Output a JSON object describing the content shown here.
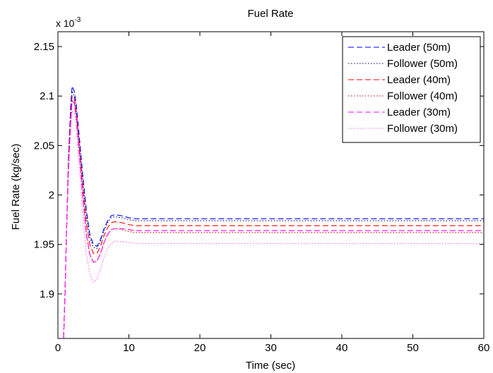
{
  "chart_data": {
    "type": "line",
    "title": "Fuel Rate",
    "xlabel": "Time (sec)",
    "ylabel": "Fuel Rate (kg/sec)",
    "y_exponent_label": "x 10",
    "y_exponent_power": "-3",
    "xlim": [
      0,
      60
    ],
    "ylim": [
      1.855,
      2.165
    ],
    "x_ticks": [
      0,
      10,
      20,
      30,
      40,
      50,
      60
    ],
    "x_tick_labels": [
      "0",
      "10",
      "20",
      "30",
      "40",
      "50",
      "60"
    ],
    "y_ticks": [
      1.9,
      1.95,
      2.0,
      2.05,
      2.1,
      2.15
    ],
    "y_tick_labels": [
      "1.9",
      "1.95",
      "2",
      "2.05",
      "2.1",
      "2.15"
    ],
    "grid": false,
    "legend_position": "top-right",
    "series": [
      {
        "name": "Leader (50m)",
        "color": "#0000ff",
        "dash": "dashed",
        "points": [
          [
            0.8,
            1.855
          ],
          [
            1.0,
            1.9
          ],
          [
            1.2,
            1.96
          ],
          [
            1.5,
            2.04
          ],
          [
            1.8,
            2.09
          ],
          [
            2.0,
            2.11
          ],
          [
            2.3,
            2.105
          ],
          [
            2.6,
            2.09
          ],
          [
            3.0,
            2.06
          ],
          [
            3.5,
            2.02
          ],
          [
            4.0,
            1.985
          ],
          [
            4.5,
            1.96
          ],
          [
            5.0,
            1.95
          ],
          [
            5.5,
            1.948
          ],
          [
            6.0,
            1.955
          ],
          [
            6.5,
            1.966
          ],
          [
            7.0,
            1.974
          ],
          [
            7.5,
            1.979
          ],
          [
            8.0,
            1.98
          ],
          [
            9.0,
            1.979
          ],
          [
            10.0,
            1.977
          ],
          [
            11.0,
            1.976
          ],
          [
            12.0,
            1.976
          ],
          [
            60.0,
            1.976
          ]
        ]
      },
      {
        "name": "Follower (50m)",
        "color": "#000080",
        "dash": "dotted",
        "points": [
          [
            0.8,
            1.855
          ],
          [
            1.0,
            1.9
          ],
          [
            1.2,
            1.96
          ],
          [
            1.5,
            2.04
          ],
          [
            1.8,
            2.085
          ],
          [
            2.0,
            2.105
          ],
          [
            2.3,
            2.1
          ],
          [
            2.6,
            2.085
          ],
          [
            3.0,
            2.055
          ],
          [
            3.5,
            2.015
          ],
          [
            4.0,
            1.98
          ],
          [
            4.5,
            1.957
          ],
          [
            5.0,
            1.947
          ],
          [
            5.5,
            1.946
          ],
          [
            6.0,
            1.953
          ],
          [
            6.5,
            1.964
          ],
          [
            7.0,
            1.972
          ],
          [
            7.5,
            1.977
          ],
          [
            8.0,
            1.978
          ],
          [
            9.0,
            1.977
          ],
          [
            10.0,
            1.975
          ],
          [
            11.0,
            1.974
          ],
          [
            12.0,
            1.974
          ],
          [
            60.0,
            1.974
          ]
        ]
      },
      {
        "name": "Leader (40m)",
        "color": "#ff0000",
        "dash": "dashed",
        "points": [
          [
            0.8,
            1.855
          ],
          [
            1.0,
            1.9
          ],
          [
            1.2,
            1.96
          ],
          [
            1.5,
            2.035
          ],
          [
            1.8,
            2.08
          ],
          [
            2.0,
            2.1
          ],
          [
            2.3,
            2.098
          ],
          [
            2.6,
            2.083
          ],
          [
            3.0,
            2.05
          ],
          [
            3.5,
            2.008
          ],
          [
            4.0,
            1.972
          ],
          [
            4.5,
            1.95
          ],
          [
            5.0,
            1.941
          ],
          [
            5.5,
            1.941
          ],
          [
            6.0,
            1.948
          ],
          [
            6.5,
            1.959
          ],
          [
            7.0,
            1.967
          ],
          [
            7.5,
            1.972
          ],
          [
            8.0,
            1.973
          ],
          [
            9.0,
            1.972
          ],
          [
            10.0,
            1.97
          ],
          [
            11.0,
            1.969
          ],
          [
            12.0,
            1.969
          ],
          [
            60.0,
            1.969
          ]
        ]
      },
      {
        "name": "Follower (40m)",
        "color": "#c00000",
        "dash": "dotted",
        "points": [
          [
            0.8,
            1.855
          ],
          [
            1.0,
            1.9
          ],
          [
            1.2,
            1.96
          ],
          [
            1.5,
            2.03
          ],
          [
            1.8,
            2.075
          ],
          [
            2.0,
            2.095
          ],
          [
            2.3,
            2.093
          ],
          [
            2.6,
            2.078
          ],
          [
            3.0,
            2.045
          ],
          [
            3.5,
            2.0
          ],
          [
            4.0,
            1.962
          ],
          [
            4.5,
            1.94
          ],
          [
            5.0,
            1.932
          ],
          [
            5.5,
            1.933
          ],
          [
            6.0,
            1.941
          ],
          [
            6.5,
            1.952
          ],
          [
            7.0,
            1.96
          ],
          [
            7.5,
            1.965
          ],
          [
            8.0,
            1.966
          ],
          [
            9.0,
            1.965
          ],
          [
            10.0,
            1.963
          ],
          [
            11.0,
            1.962
          ],
          [
            12.0,
            1.962
          ],
          [
            60.0,
            1.962
          ]
        ]
      },
      {
        "name": "Leader (30m)",
        "color": "#ff00ff",
        "dash": "dashed",
        "points": [
          [
            0.8,
            1.855
          ],
          [
            1.0,
            1.9
          ],
          [
            1.2,
            1.96
          ],
          [
            1.5,
            2.03
          ],
          [
            1.8,
            2.075
          ],
          [
            2.0,
            2.095
          ],
          [
            2.3,
            2.093
          ],
          [
            2.6,
            2.077
          ],
          [
            3.0,
            2.043
          ],
          [
            3.5,
            1.998
          ],
          [
            4.0,
            1.96
          ],
          [
            4.5,
            1.94
          ],
          [
            5.0,
            1.932
          ],
          [
            5.5,
            1.933
          ],
          [
            6.0,
            1.941
          ],
          [
            6.5,
            1.952
          ],
          [
            7.0,
            1.96
          ],
          [
            7.5,
            1.965
          ],
          [
            8.0,
            1.966
          ],
          [
            9.0,
            1.966
          ],
          [
            10.0,
            1.965
          ],
          [
            11.0,
            1.964
          ],
          [
            12.0,
            1.964
          ],
          [
            60.0,
            1.964
          ]
        ]
      },
      {
        "name": "Follower (30m)",
        "color": "#ff66ff",
        "dash": "dotted",
        "points": [
          [
            0.8,
            1.855
          ],
          [
            1.0,
            1.9
          ],
          [
            1.2,
            1.96
          ],
          [
            1.5,
            2.02
          ],
          [
            1.8,
            2.065
          ],
          [
            2.0,
            2.085
          ],
          [
            2.3,
            2.083
          ],
          [
            2.6,
            2.065
          ],
          [
            3.0,
            2.028
          ],
          [
            3.5,
            1.98
          ],
          [
            4.0,
            1.94
          ],
          [
            4.5,
            1.92
          ],
          [
            5.0,
            1.912
          ],
          [
            5.5,
            1.915
          ],
          [
            6.0,
            1.925
          ],
          [
            6.5,
            1.937
          ],
          [
            7.0,
            1.946
          ],
          [
            7.5,
            1.951
          ],
          [
            8.0,
            1.953
          ],
          [
            9.0,
            1.953
          ],
          [
            10.0,
            1.952
          ],
          [
            11.0,
            1.951
          ],
          [
            12.0,
            1.951
          ],
          [
            60.0,
            1.951
          ]
        ]
      }
    ]
  }
}
